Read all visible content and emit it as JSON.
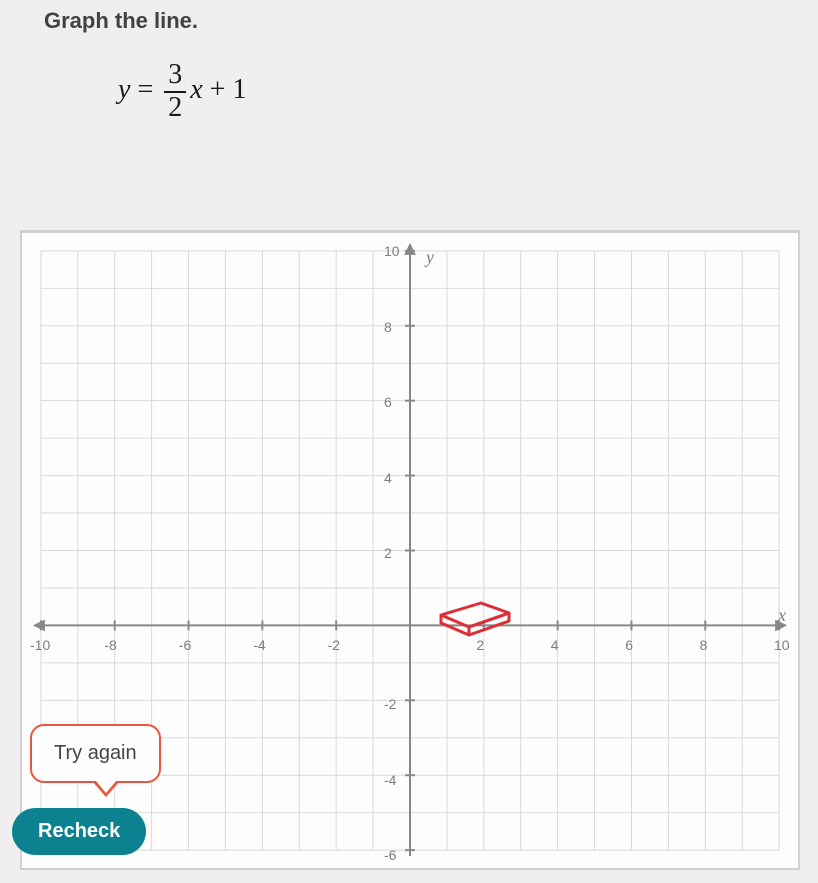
{
  "instruction": "Graph the line.",
  "equation": {
    "lhs_var": "y",
    "numerator": "3",
    "denominator": "2",
    "variable": "x",
    "constant": "1"
  },
  "graph": {
    "xlim": [
      -10,
      10
    ],
    "ylim": [
      -6,
      10
    ],
    "xtick_step": 2,
    "ytick_step": 2,
    "y_axis_label": "y",
    "x_axis_label": "x",
    "grid_color": "#d8d8d8",
    "axis_color": "#888888",
    "tick_color": "#7d7d7d",
    "background_color": "#fdfdfd",
    "eraser_color": "#dc2e34",
    "x_ticks": [
      "-10",
      "-8",
      "-6",
      "-4",
      "-2",
      "2",
      "4",
      "6",
      "8",
      "10"
    ],
    "y_ticks_pos": [
      "10",
      "8",
      "6",
      "4",
      "2"
    ],
    "y_ticks_neg": [
      "-2",
      "-4",
      "-6"
    ]
  },
  "tooltip_text": "Try again",
  "recheck_label": "Recheck",
  "colors": {
    "tooltip_border": "#e8563f",
    "recheck_bg": "#0c8290",
    "text_dark": "#424243"
  }
}
